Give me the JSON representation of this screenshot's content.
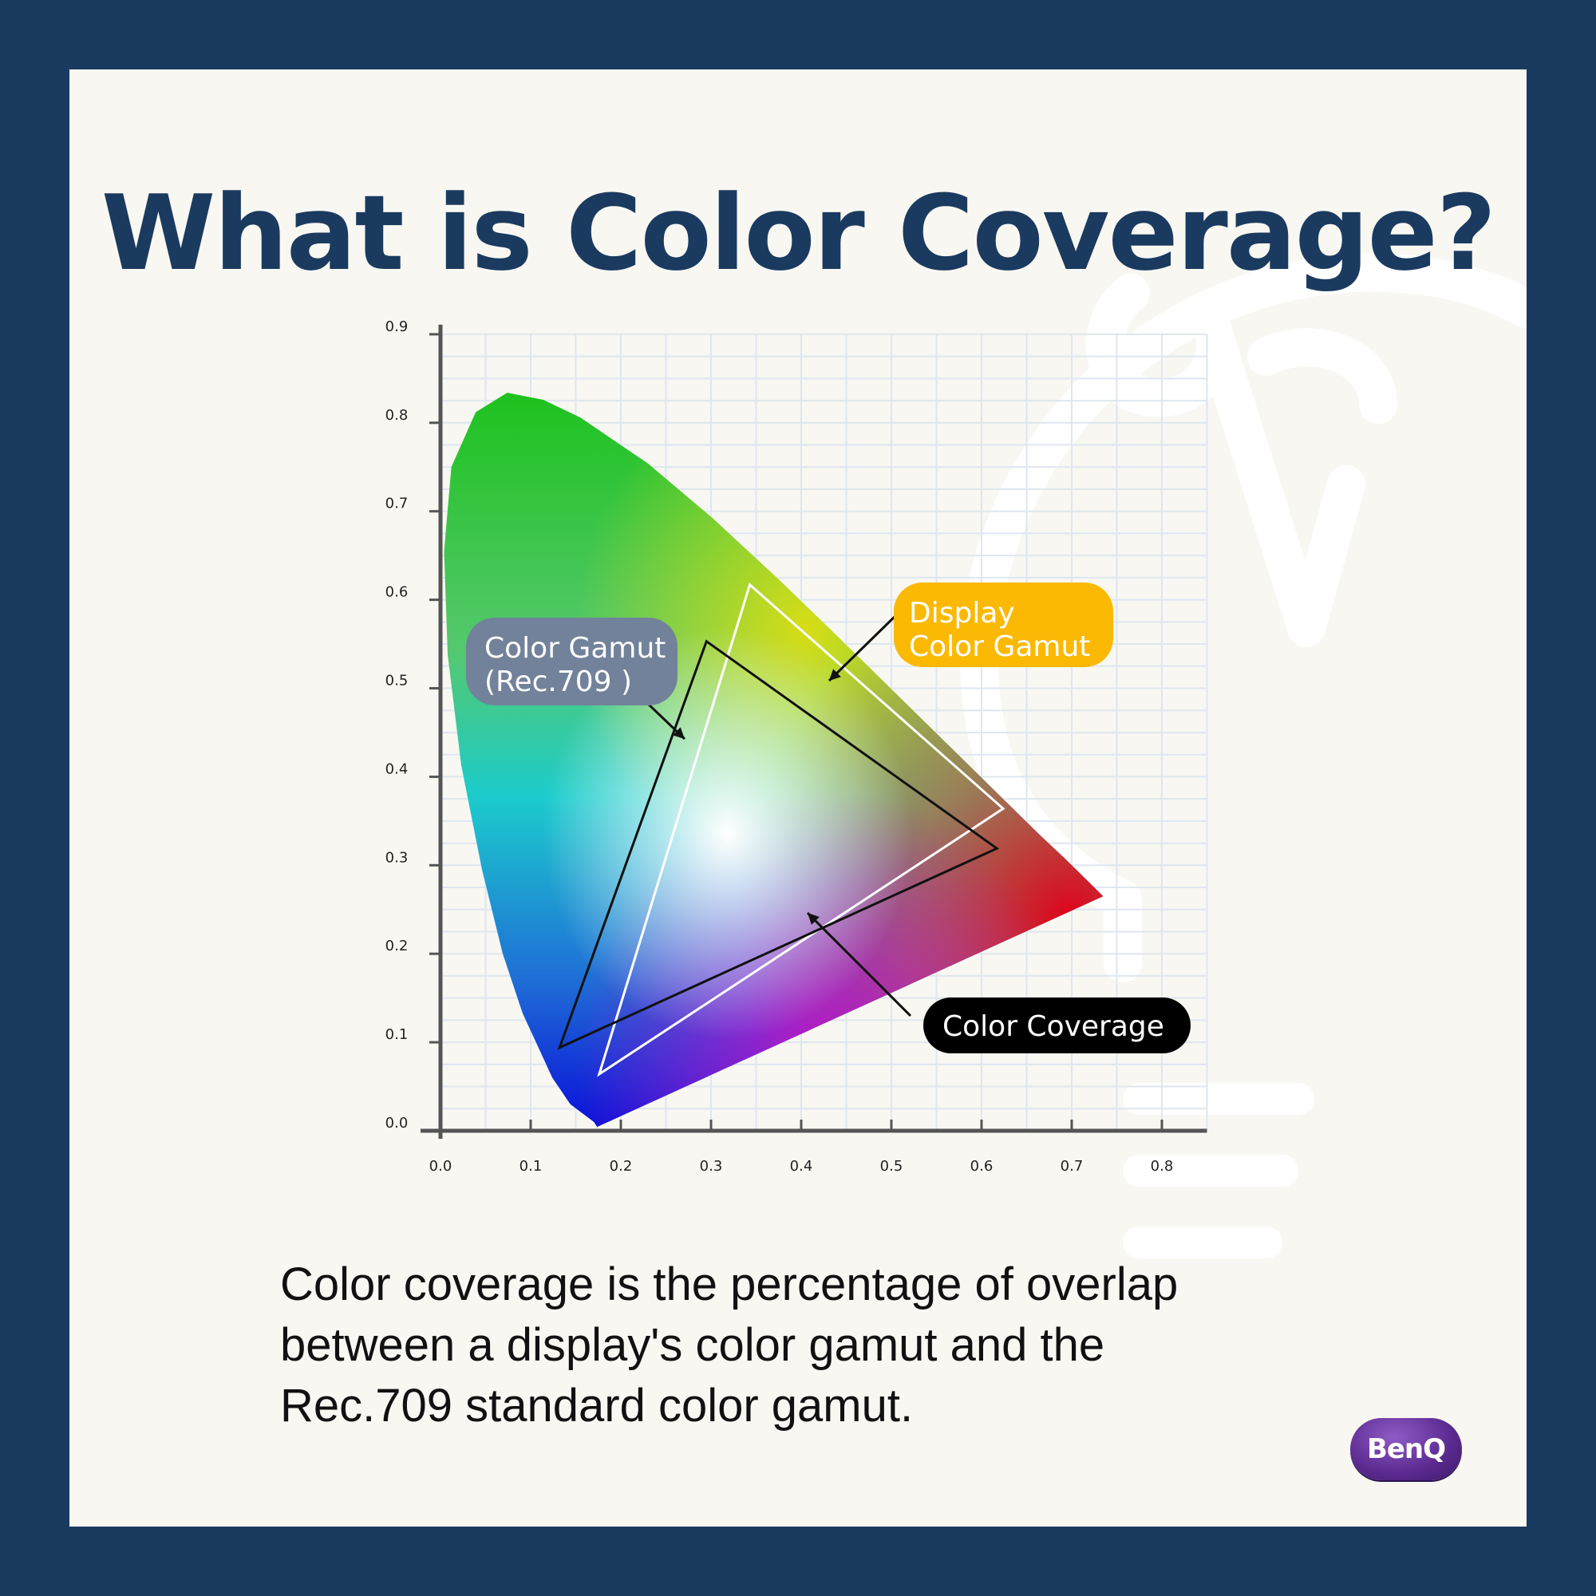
{
  "title": "What is Color Coverage?",
  "description": [
    "Color coverage is the percentage of overlap",
    "between a display's color gamut and the",
    "Rec.709 standard color gamut."
  ],
  "brand": "BenQ",
  "colors": {
    "border": "#1a3a60",
    "background": "#f8f7f2",
    "title": "#1b3a5f",
    "rec709_label": "#72829a",
    "display_label": "#fbb904",
    "coverage_label": "#000000"
  },
  "chart_data": {
    "type": "diagram",
    "x_ticks": [
      "0.0",
      "0.1",
      "0.2",
      "0.3",
      "0.4",
      "0.5",
      "0.6",
      "0.7",
      "0.8"
    ],
    "y_ticks": [
      "0.0",
      "0.1",
      "0.2",
      "0.3",
      "0.4",
      "0.5",
      "0.6",
      "0.7",
      "0.8",
      "0.9"
    ],
    "xlim": [
      0,
      0.85
    ],
    "ylim": [
      0,
      0.9
    ],
    "grid": true,
    "spectral_locus": [
      [
        0.175,
        0.005
      ],
      [
        0.174,
        0.004
      ],
      [
        0.17,
        0.01
      ],
      [
        0.144,
        0.03
      ],
      [
        0.124,
        0.06
      ],
      [
        0.091,
        0.133
      ],
      [
        0.069,
        0.2
      ],
      [
        0.046,
        0.295
      ],
      [
        0.023,
        0.413
      ],
      [
        0.008,
        0.538
      ],
      [
        0.004,
        0.655
      ],
      [
        0.012,
        0.75
      ],
      [
        0.039,
        0.812
      ],
      [
        0.074,
        0.834
      ],
      [
        0.114,
        0.826
      ],
      [
        0.155,
        0.806
      ],
      [
        0.23,
        0.754
      ],
      [
        0.302,
        0.692
      ],
      [
        0.374,
        0.624
      ],
      [
        0.444,
        0.555
      ],
      [
        0.512,
        0.487
      ],
      [
        0.575,
        0.424
      ],
      [
        0.627,
        0.372
      ],
      [
        0.666,
        0.333
      ],
      [
        0.692,
        0.308
      ],
      [
        0.705,
        0.295
      ],
      [
        0.735,
        0.265
      ]
    ],
    "rec709_gamut": [
      [
        0.295,
        0.553
      ],
      [
        0.617,
        0.319
      ],
      [
        0.132,
        0.094
      ]
    ],
    "display_gamut": [
      [
        0.343,
        0.617
      ],
      [
        0.624,
        0.364
      ],
      [
        0.176,
        0.064
      ]
    ],
    "labels": {
      "rec709": [
        "Color Gamut",
        "(Rec.709 )"
      ],
      "display": [
        "Display",
        "Color Gamut"
      ],
      "coverage": "Color Coverage"
    }
  }
}
